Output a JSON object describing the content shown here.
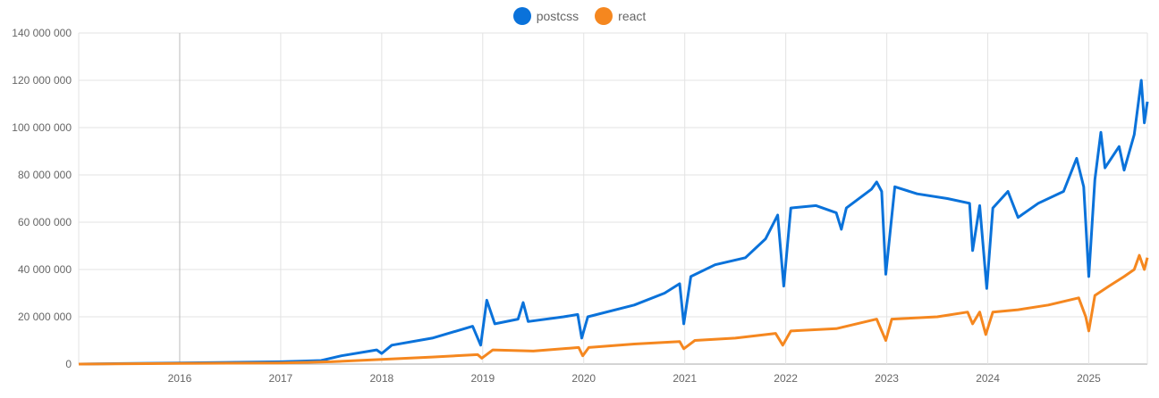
{
  "chart_data": {
    "type": "line",
    "title": "",
    "xlabel": "",
    "ylabel": "",
    "xlim": [
      2015.0,
      2025.58
    ],
    "ylim": [
      0,
      140000000
    ],
    "grid": true,
    "legend": "top-center",
    "x_ticks": [
      "2016",
      "2017",
      "2018",
      "2019",
      "2020",
      "2021",
      "2022",
      "2023",
      "2024",
      "2025"
    ],
    "y_ticks": [
      "0",
      "20 000 000",
      "40 000 000",
      "60 000 000",
      "80 000 000",
      "100 000 000",
      "120 000 000",
      "140 000 000"
    ],
    "series": [
      {
        "name": "postcss",
        "color": "#0a72da",
        "points": [
          [
            2015.0,
            0
          ],
          [
            2016.0,
            500000
          ],
          [
            2017.0,
            1000000
          ],
          [
            2017.4,
            1500000
          ],
          [
            2017.6,
            3500000
          ],
          [
            2017.95,
            6000000
          ],
          [
            2018.0,
            4500000
          ],
          [
            2018.1,
            8000000
          ],
          [
            2018.5,
            11000000
          ],
          [
            2018.9,
            16000000
          ],
          [
            2018.98,
            8000000
          ],
          [
            2019.04,
            27000000
          ],
          [
            2019.12,
            17000000
          ],
          [
            2019.35,
            19000000
          ],
          [
            2019.4,
            26000000
          ],
          [
            2019.45,
            18000000
          ],
          [
            2019.8,
            20000000
          ],
          [
            2019.94,
            21000000
          ],
          [
            2019.98,
            11000000
          ],
          [
            2020.04,
            20000000
          ],
          [
            2020.5,
            25000000
          ],
          [
            2020.8,
            30000000
          ],
          [
            2020.95,
            34000000
          ],
          [
            2020.99,
            17000000
          ],
          [
            2021.06,
            37000000
          ],
          [
            2021.3,
            42000000
          ],
          [
            2021.6,
            45000000
          ],
          [
            2021.8,
            53000000
          ],
          [
            2021.92,
            63000000
          ],
          [
            2021.98,
            33000000
          ],
          [
            2022.05,
            66000000
          ],
          [
            2022.3,
            67000000
          ],
          [
            2022.5,
            64000000
          ],
          [
            2022.55,
            57000000
          ],
          [
            2022.6,
            66000000
          ],
          [
            2022.85,
            74000000
          ],
          [
            2022.9,
            77000000
          ],
          [
            2022.95,
            73000000
          ],
          [
            2022.99,
            38000000
          ],
          [
            2023.08,
            75000000
          ],
          [
            2023.3,
            72000000
          ],
          [
            2023.6,
            70000000
          ],
          [
            2023.82,
            68000000
          ],
          [
            2023.85,
            48000000
          ],
          [
            2023.92,
            67000000
          ],
          [
            2023.99,
            32000000
          ],
          [
            2024.05,
            66000000
          ],
          [
            2024.2,
            73000000
          ],
          [
            2024.3,
            62000000
          ],
          [
            2024.5,
            68000000
          ],
          [
            2024.75,
            73000000
          ],
          [
            2024.88,
            87000000
          ],
          [
            2024.95,
            75000000
          ],
          [
            2025.0,
            37000000
          ],
          [
            2025.06,
            78000000
          ],
          [
            2025.12,
            98000000
          ],
          [
            2025.16,
            83000000
          ],
          [
            2025.3,
            92000000
          ],
          [
            2025.35,
            82000000
          ],
          [
            2025.45,
            97000000
          ],
          [
            2025.52,
            120000000
          ],
          [
            2025.55,
            102000000
          ],
          [
            2025.58,
            111000000
          ]
        ]
      },
      {
        "name": "react",
        "color": "#f5871f",
        "points": [
          [
            2015.0,
            0
          ],
          [
            2016.0,
            300000
          ],
          [
            2017.0,
            500000
          ],
          [
            2017.5,
            1000000
          ],
          [
            2018.0,
            2000000
          ],
          [
            2018.5,
            3000000
          ],
          [
            2018.95,
            4000000
          ],
          [
            2018.99,
            2500000
          ],
          [
            2019.1,
            6000000
          ],
          [
            2019.5,
            5500000
          ],
          [
            2019.95,
            7000000
          ],
          [
            2019.99,
            3500000
          ],
          [
            2020.05,
            7000000
          ],
          [
            2020.5,
            8500000
          ],
          [
            2020.95,
            9500000
          ],
          [
            2020.99,
            6500000
          ],
          [
            2021.1,
            10000000
          ],
          [
            2021.5,
            11000000
          ],
          [
            2021.9,
            13000000
          ],
          [
            2021.97,
            8000000
          ],
          [
            2022.05,
            14000000
          ],
          [
            2022.5,
            15000000
          ],
          [
            2022.9,
            19000000
          ],
          [
            2022.99,
            10000000
          ],
          [
            2023.05,
            19000000
          ],
          [
            2023.5,
            20000000
          ],
          [
            2023.8,
            22000000
          ],
          [
            2023.85,
            17000000
          ],
          [
            2023.92,
            22000000
          ],
          [
            2023.98,
            12500000
          ],
          [
            2024.05,
            22000000
          ],
          [
            2024.3,
            23000000
          ],
          [
            2024.6,
            25000000
          ],
          [
            2024.9,
            28000000
          ],
          [
            2024.97,
            20000000
          ],
          [
            2025.0,
            14000000
          ],
          [
            2025.06,
            29000000
          ],
          [
            2025.2,
            33000000
          ],
          [
            2025.35,
            37000000
          ],
          [
            2025.45,
            40000000
          ],
          [
            2025.5,
            46000000
          ],
          [
            2025.55,
            40000000
          ],
          [
            2025.58,
            45000000
          ]
        ]
      }
    ]
  }
}
